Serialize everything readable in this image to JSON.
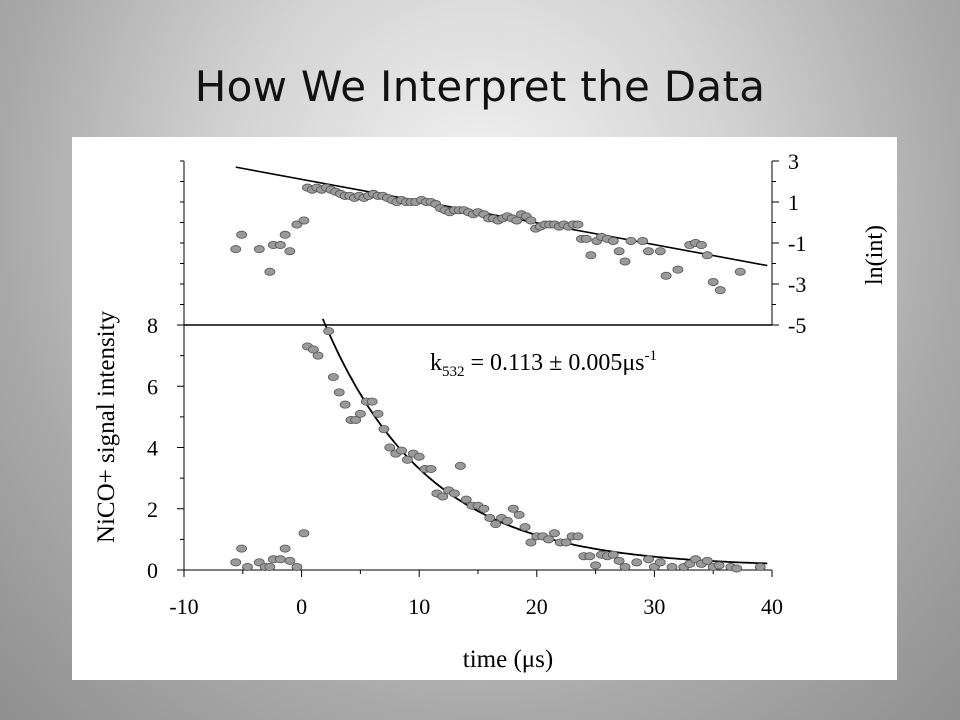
{
  "title": "How We Interpret the  Data",
  "chart_data": [
    {
      "type": "scatter",
      "panel": "top",
      "ylabel": "ln(int)",
      "ylabel_side": "right",
      "xlim": [
        -10,
        40
      ],
      "ylim": [
        -5,
        3
      ],
      "yticks": [
        "3",
        "1",
        "-1",
        "-3",
        "-5"
      ],
      "grid": false,
      "marker_color": "#9a9a9a",
      "series": [
        {
          "points": [
            [
              -5.6,
              -1.3
            ],
            [
              -5.1,
              -0.6
            ],
            [
              -3.6,
              -1.3
            ],
            [
              -2.7,
              -2.4
            ],
            [
              -2.4,
              -1.1
            ],
            [
              -1.8,
              -1.1
            ],
            [
              -1.4,
              -0.6
            ],
            [
              -1.0,
              -1.4
            ],
            [
              -0.4,
              -0.1
            ],
            [
              0.2,
              0.1
            ],
            [
              0.5,
              1.7
            ],
            [
              0.9,
              1.6
            ],
            [
              1.3,
              1.7
            ],
            [
              1.7,
              1.6
            ],
            [
              2.1,
              1.7
            ],
            [
              2.5,
              1.6
            ],
            [
              2.9,
              1.5
            ],
            [
              3.3,
              1.4
            ],
            [
              3.7,
              1.3
            ],
            [
              4.1,
              1.3
            ],
            [
              4.5,
              1.2
            ],
            [
              4.9,
              1.3
            ],
            [
              5.3,
              1.2
            ],
            [
              5.7,
              1.3
            ],
            [
              6.1,
              1.4
            ],
            [
              6.5,
              1.3
            ],
            [
              6.9,
              1.3
            ],
            [
              7.3,
              1.2
            ],
            [
              7.7,
              1.1
            ],
            [
              8.1,
              1.0
            ],
            [
              8.5,
              1.1
            ],
            [
              8.9,
              1.0
            ],
            [
              9.3,
              1.0
            ],
            [
              9.7,
              1.0
            ],
            [
              10.2,
              1.1
            ],
            [
              10.6,
              1.0
            ],
            [
              11.0,
              1.0
            ],
            [
              11.4,
              0.9
            ],
            [
              11.8,
              0.7
            ],
            [
              12.2,
              0.6
            ],
            [
              12.6,
              0.5
            ],
            [
              13.0,
              0.6
            ],
            [
              13.4,
              0.6
            ],
            [
              13.8,
              0.6
            ],
            [
              14.2,
              0.5
            ],
            [
              14.6,
              0.4
            ],
            [
              15.0,
              0.5
            ],
            [
              15.5,
              0.4
            ],
            [
              15.9,
              0.2
            ],
            [
              16.3,
              0.2
            ],
            [
              16.7,
              0.1
            ],
            [
              17.1,
              0.2
            ],
            [
              17.5,
              0.3
            ],
            [
              17.9,
              0.2
            ],
            [
              18.3,
              0.1
            ],
            [
              18.7,
              0.4
            ],
            [
              19.1,
              0.3
            ],
            [
              19.5,
              0.1
            ],
            [
              19.9,
              -0.3
            ],
            [
              20.3,
              -0.2
            ],
            [
              20.7,
              -0.1
            ],
            [
              21.1,
              -0.1
            ],
            [
              21.5,
              -0.1
            ],
            [
              21.9,
              -0.2
            ],
            [
              22.3,
              -0.1
            ],
            [
              22.7,
              -0.2
            ],
            [
              23.1,
              -0.1
            ],
            [
              23.5,
              -0.1
            ],
            [
              23.8,
              -0.8
            ],
            [
              24.2,
              -0.8
            ],
            [
              24.6,
              -1.6
            ],
            [
              25.1,
              -0.9
            ],
            [
              25.5,
              -0.7
            ],
            [
              26.0,
              -0.8
            ],
            [
              26.5,
              -0.9
            ],
            [
              27.0,
              -1.4
            ],
            [
              27.5,
              -1.9
            ],
            [
              28.0,
              -0.9
            ],
            [
              29.0,
              -0.9
            ],
            [
              29.5,
              -1.4
            ],
            [
              30.5,
              -1.4
            ],
            [
              31.0,
              -2.6
            ],
            [
              32.0,
              -2.3
            ],
            [
              33.0,
              -1.1
            ],
            [
              33.5,
              -1.0
            ],
            [
              34.0,
              -1.1
            ],
            [
              34.5,
              -1.6
            ],
            [
              35.0,
              -2.9
            ],
            [
              35.6,
              -3.3
            ],
            [
              37.3,
              -2.4
            ]
          ]
        }
      ],
      "fit_line": [
        [
          -5.6,
          2.7
        ],
        [
          39.6,
          -2.1
        ]
      ]
    },
    {
      "type": "scatter",
      "panel": "bottom",
      "xlabel": "time (μs)",
      "ylabel": "NiCO+ signal intensity",
      "xlim": [
        -10,
        40
      ],
      "ylim": [
        0,
        8
      ],
      "xticks": [
        "-10",
        "0",
        "10",
        "20",
        "30",
        "40"
      ],
      "yticks": [
        "8",
        "6",
        "4",
        "2",
        "0"
      ],
      "grid": false,
      "marker_color": "#9a9a9a",
      "annotation": {
        "main": "k",
        "sub": "532",
        "rest": " = 0.113 ± 0.005μs",
        "sup": "-1"
      },
      "series": [
        {
          "points": [
            [
              -5.6,
              0.25
            ],
            [
              -5.1,
              0.7
            ],
            [
              -4.6,
              0.1
            ],
            [
              -3.6,
              0.25
            ],
            [
              -3.1,
              0.1
            ],
            [
              -2.7,
              0.1
            ],
            [
              -2.4,
              0.35
            ],
            [
              -1.8,
              0.35
            ],
            [
              -1.4,
              0.7
            ],
            [
              -1.0,
              0.3
            ],
            [
              -0.4,
              0.1
            ],
            [
              0.2,
              1.2
            ],
            [
              0.5,
              7.3
            ],
            [
              1.0,
              7.2
            ],
            [
              1.4,
              7.0
            ],
            [
              2.3,
              7.8
            ],
            [
              2.7,
              6.3
            ],
            [
              3.2,
              5.8
            ],
            [
              3.7,
              5.4
            ],
            [
              4.2,
              4.9
            ],
            [
              4.6,
              4.9
            ],
            [
              5.0,
              5.1
            ],
            [
              5.5,
              5.5
            ],
            [
              6.0,
              5.5
            ],
            [
              6.5,
              5.1
            ],
            [
              7.0,
              4.6
            ],
            [
              7.5,
              4.0
            ],
            [
              8.0,
              3.8
            ],
            [
              8.5,
              3.9
            ],
            [
              9.0,
              3.6
            ],
            [
              9.5,
              3.8
            ],
            [
              10.0,
              3.7
            ],
            [
              10.5,
              3.3
            ],
            [
              11.0,
              3.3
            ],
            [
              11.5,
              2.5
            ],
            [
              12.0,
              2.4
            ],
            [
              12.5,
              2.6
            ],
            [
              13.0,
              2.5
            ],
            [
              13.5,
              3.4
            ],
            [
              14.0,
              2.3
            ],
            [
              14.5,
              2.1
            ],
            [
              15.0,
              2.1
            ],
            [
              15.5,
              2.0
            ],
            [
              16.0,
              1.7
            ],
            [
              16.5,
              1.5
            ],
            [
              17.0,
              1.7
            ],
            [
              17.5,
              1.6
            ],
            [
              18.0,
              2.0
            ],
            [
              18.5,
              1.8
            ],
            [
              19.0,
              1.4
            ],
            [
              19.5,
              0.9
            ],
            [
              20.0,
              1.1
            ],
            [
              20.5,
              1.1
            ],
            [
              21.0,
              1.0
            ],
            [
              21.5,
              1.2
            ],
            [
              22.0,
              0.9
            ],
            [
              22.5,
              0.9
            ],
            [
              23.0,
              1.1
            ],
            [
              23.5,
              1.1
            ],
            [
              24.0,
              0.45
            ],
            [
              24.5,
              0.45
            ],
            [
              25.0,
              0.15
            ],
            [
              25.5,
              0.5
            ],
            [
              26.0,
              0.45
            ],
            [
              26.5,
              0.5
            ],
            [
              27.0,
              0.3
            ],
            [
              27.5,
              0.1
            ],
            [
              28.5,
              0.25
            ],
            [
              29.5,
              0.35
            ],
            [
              30.0,
              0.1
            ],
            [
              30.5,
              0.25
            ],
            [
              31.5,
              0.1
            ],
            [
              32.5,
              0.1
            ],
            [
              33.0,
              0.2
            ],
            [
              33.5,
              0.35
            ],
            [
              34.0,
              0.2
            ],
            [
              34.5,
              0.3
            ],
            [
              35.0,
              0.1
            ],
            [
              35.5,
              0.15
            ],
            [
              36.5,
              0.1
            ],
            [
              37.0,
              0.05
            ],
            [
              39.0,
              0.1
            ]
          ]
        }
      ],
      "fit_curve": {
        "x_start": 1.8,
        "x_end": 39.6,
        "amplitude": 8.1,
        "rate": 0.113,
        "t0": 1.8,
        "offset": 0.1
      }
    }
  ]
}
